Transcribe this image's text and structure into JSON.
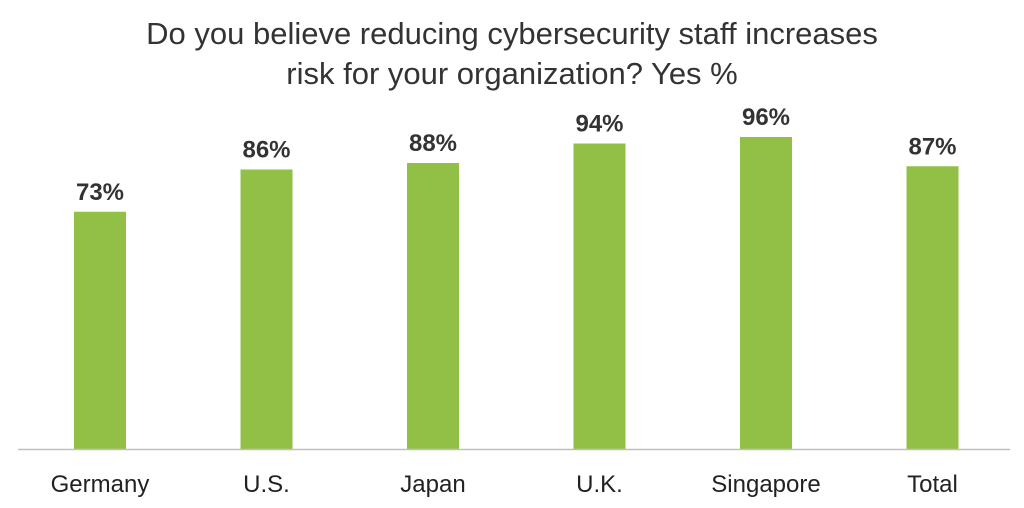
{
  "chart_data": {
    "type": "bar",
    "title_lines": [
      "Do you believe reducing cybersecurity staff increases",
      "risk for your organization? Yes %"
    ],
    "categories": [
      "Germany",
      "U.S.",
      "Japan",
      "U.K.",
      "Singapore",
      "Total"
    ],
    "values": [
      73,
      86,
      88,
      94,
      96,
      87
    ],
    "data_labels": [
      "73%",
      "86%",
      "88%",
      "94%",
      "96%",
      "87%"
    ],
    "unit": "%",
    "ylim": [
      0,
      100
    ],
    "grid": false,
    "legend": "none",
    "bar_color": "#92C047",
    "axis_color": "#BFBFBF"
  }
}
